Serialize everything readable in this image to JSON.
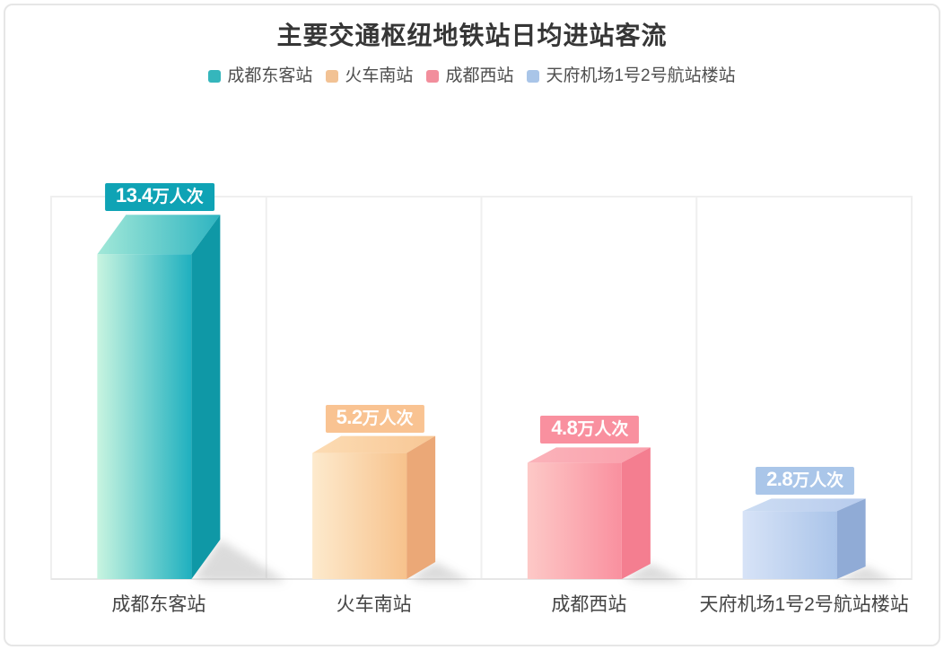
{
  "page": {
    "title": "主要交通枢纽地铁站日均进站客流"
  },
  "legend": {
    "items": [
      {
        "label": "成都东客站",
        "color": "#35b6bc"
      },
      {
        "label": "火车南站",
        "color": "#f2c294"
      },
      {
        "label": "成都西站",
        "color": "#f28e9c"
      },
      {
        "label": "天府机场1号2号航站楼站",
        "color": "#a9c5e8"
      }
    ]
  },
  "chart_data": {
    "type": "bar",
    "style": "3d-cuboid-columns",
    "title": "主要交通枢纽地铁站日均进站客流",
    "categories": [
      "成都东客站",
      "火车南站",
      "成都西站",
      "天府机场1号2号航站楼站"
    ],
    "values": [
      13.4,
      5.2,
      4.8,
      2.8
    ],
    "unit": "万人次",
    "value_labels": [
      "13.4万人次",
      "5.2万人次",
      "4.8万人次",
      "2.8万人次"
    ],
    "xlabel": "",
    "ylabel": "",
    "ylim": [
      0,
      15.8
    ],
    "grid": true,
    "legend_position": "top",
    "series_colors": [
      {
        "name": "成都东客站",
        "front_light": "#c8f4e0",
        "front_dark": "#1fb0bf",
        "top_light": "#a2e8d8",
        "top_dark": "#2eb4c1",
        "side": "#0f98a6",
        "label_bg": "#0fa3b5"
      },
      {
        "name": "火车南站",
        "front_light": "#fdeacd",
        "front_dark": "#f7c28c",
        "top_light": "#fcdcb4",
        "top_dark": "#f8c795",
        "side": "#eba877",
        "label_bg": "#f9c392"
      },
      {
        "name": "成都西站",
        "front_light": "#fdc9c7",
        "front_dark": "#f9909f",
        "top_light": "#fbb3ba",
        "top_dark": "#f9a0ac",
        "side": "#f47e90",
        "label_bg": "#f9909f"
      },
      {
        "name": "天府机场1号2号航站楼站",
        "front_light": "#d7e3f7",
        "front_dark": "#aac4e9",
        "top_light": "#cdddf3",
        "top_dark": "#b7cbed",
        "side": "#90abd6",
        "label_bg": "#aac6e9"
      }
    ],
    "grid_color": "#efefef",
    "axis_line_color": "#e7e7e7"
  }
}
